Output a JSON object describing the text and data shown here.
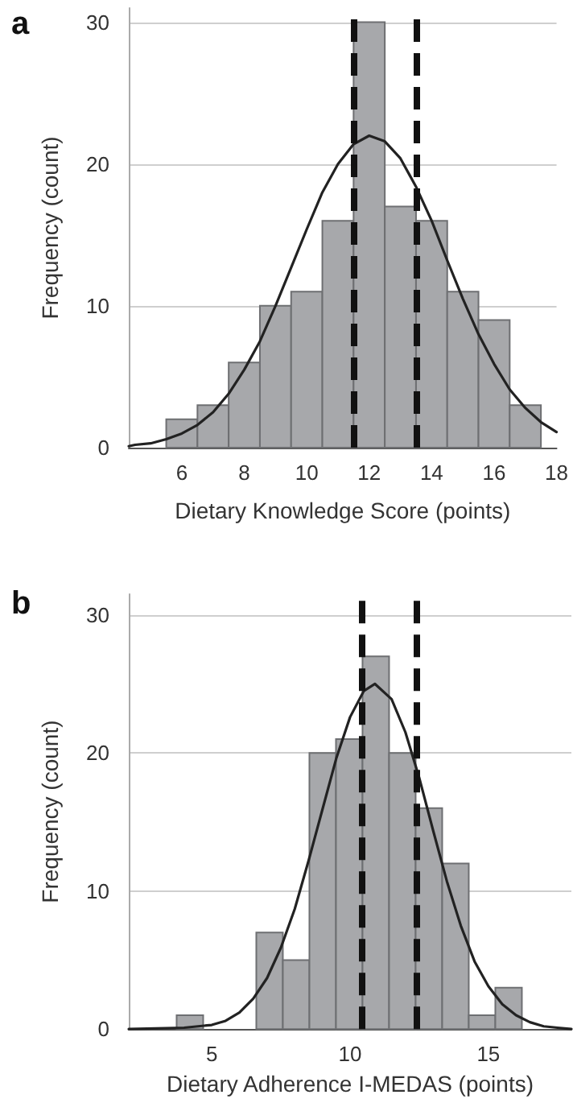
{
  "chart_data": [
    {
      "type": "histogram",
      "title": "a",
      "xlabel": "Dietary Knowledge Score (points)",
      "ylabel": "Frequency (count)",
      "bins": [
        5.5,
        6.5,
        7.5,
        8.5,
        9.5,
        10.5,
        11.5,
        12.5,
        13.5,
        14.5,
        15.5,
        16.5,
        17.5
      ],
      "values": [
        2,
        3,
        6,
        10,
        11,
        16,
        30,
        17,
        16,
        11,
        9,
        3
      ],
      "color": "#a7a8ab",
      "xlim": [
        4.3,
        18
      ],
      "xticks": [
        6,
        8,
        10,
        12,
        14,
        16,
        18
      ],
      "ylim": [
        0,
        31
      ],
      "yticks": [
        0,
        10,
        20,
        30
      ],
      "grid": "y",
      "ref_lines": [
        {
          "axis": "x",
          "value": 11.5,
          "color": "#111111",
          "line_style": "dashed"
        },
        {
          "axis": "x",
          "value": 13.5,
          "color": "#111111",
          "line_style": "dashed"
        }
      ],
      "series": [
        {
          "type": "line",
          "color": "#222222",
          "marker": "none",
          "x": [
            4.3,
            4.5,
            5,
            5.5,
            6,
            6.5,
            7,
            7.5,
            8,
            8.5,
            9,
            9.5,
            10,
            10.5,
            11,
            11.5,
            12,
            12.5,
            13,
            13.5,
            14,
            14.5,
            15,
            15.5,
            16,
            16.5,
            17,
            17.5,
            18
          ],
          "values": [
            0.1,
            0.2,
            0.3,
            0.6,
            1,
            1.6,
            2.5,
            3.8,
            5.5,
            7.5,
            10,
            12.7,
            15.4,
            18,
            20,
            21.4,
            22,
            21.6,
            20.4,
            18.4,
            16,
            13.2,
            10.5,
            8,
            5.9,
            4.1,
            2.8,
            1.8,
            1.1
          ]
        }
      ]
    },
    {
      "type": "histogram",
      "title": "b",
      "xlabel": "Dietary Adherence I-MEDAS (points)",
      "ylabel": "Frequency (count)",
      "bins": [
        3.73,
        4.69,
        5.65,
        6.61,
        7.57,
        8.53,
        9.49,
        10.45,
        11.41,
        12.37,
        13.33,
        14.29,
        15.25,
        16.21
      ],
      "values": [
        1,
        0,
        0,
        7,
        5,
        20,
        21,
        27,
        20,
        16,
        12,
        1,
        3
      ],
      "color": "#a7a8ab",
      "xlim": [
        2,
        18
      ],
      "xticks": [
        5,
        10,
        15
      ],
      "ylim": [
        0,
        31.5
      ],
      "yticks": [
        0,
        10,
        20,
        30
      ],
      "grid": "y",
      "ref_lines": [
        {
          "axis": "x",
          "value": 10.45,
          "color": "#111111",
          "line_style": "dashed"
        },
        {
          "axis": "x",
          "value": 12.4,
          "color": "#111111",
          "line_style": "dashed"
        }
      ],
      "series": [
        {
          "type": "line",
          "color": "#222222",
          "marker": "none",
          "x": [
            2,
            4,
            5,
            5.5,
            6,
            6.5,
            7,
            7.5,
            8,
            8.5,
            9,
            9.5,
            10,
            10.5,
            10.9,
            11.5,
            12,
            12.5,
            13,
            13.5,
            14,
            14.5,
            15,
            15.5,
            16,
            16.5,
            17,
            17.5,
            18
          ],
          "values": [
            0,
            0.1,
            0.3,
            0.6,
            1.2,
            2.2,
            3.7,
            5.9,
            8.7,
            12.2,
            15.9,
            19.6,
            22.6,
            24.5,
            25,
            23.9,
            21.5,
            18.2,
            14.4,
            10.7,
            7.5,
            4.9,
            3.1,
            1.8,
            1,
            0.5,
            0.2,
            0.1,
            0
          ]
        }
      ]
    }
  ]
}
